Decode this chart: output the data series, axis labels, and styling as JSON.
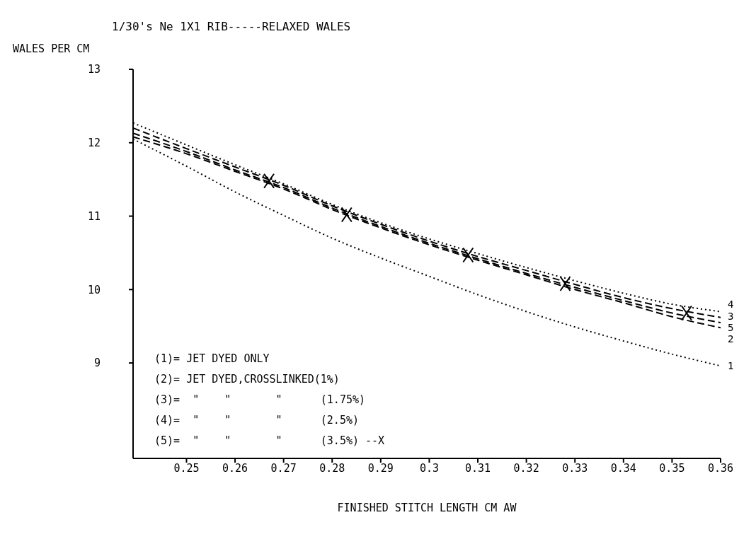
{
  "chart_data": {
    "type": "line",
    "title": "1/30's Ne 1X1 RIB-----RELAXED WALES",
    "xlabel": "FINISHED STITCH LENGTH CM AW",
    "ylabel": "WALES PER CM",
    "x": [
      0.239,
      0.25,
      0.26,
      0.27,
      0.28,
      0.29,
      0.3,
      0.31,
      0.32,
      0.33,
      0.34,
      0.35,
      0.36
    ],
    "series": [
      {
        "name": "1",
        "color": "#000000",
        "line_style": "dotted",
        "values": [
          12.05,
          11.68,
          11.33,
          11.01,
          10.7,
          10.43,
          10.18,
          9.93,
          9.7,
          9.49,
          9.3,
          9.12,
          8.96
        ]
      },
      {
        "name": "2",
        "color": "#000000",
        "line_style": "dashed",
        "values": [
          12.08,
          11.85,
          11.61,
          11.37,
          11.09,
          10.84,
          10.61,
          10.4,
          10.2,
          10.0,
          9.82,
          9.63,
          9.48
        ]
      },
      {
        "name": "3",
        "color": "#000000",
        "line_style": "dashed",
        "values": [
          12.2,
          11.92,
          11.67,
          11.42,
          11.14,
          10.89,
          10.66,
          10.45,
          10.26,
          10.07,
          9.89,
          9.74,
          9.62
        ]
      },
      {
        "name": "4",
        "color": "#000000",
        "line_style": "dotted",
        "values": [
          12.27,
          11.97,
          11.7,
          11.44,
          11.16,
          10.91,
          10.69,
          10.49,
          10.3,
          10.12,
          9.95,
          9.8,
          9.7
        ]
      },
      {
        "name": "5",
        "color": "#000000",
        "line_style": "dashed",
        "values": [
          12.13,
          11.88,
          11.63,
          11.39,
          11.11,
          10.86,
          10.63,
          10.42,
          10.22,
          10.03,
          9.85,
          9.68,
          9.55
        ]
      },
      {
        "type": "scatter",
        "marker": "cross",
        "color": "#000000",
        "x": [
          0.267,
          0.283,
          0.308,
          0.328,
          0.353
        ],
        "values": [
          11.48,
          11.02,
          10.47,
          10.08,
          9.68
        ]
      }
    ],
    "xlim": [
      0.239,
      0.36
    ],
    "xticks": [
      0.25,
      0.26,
      0.27,
      0.28,
      0.29,
      0.3,
      0.31,
      0.32,
      0.33,
      0.34,
      0.35,
      0.36
    ],
    "ylim": [
      7.7,
      13
    ],
    "yticks": [
      9,
      10,
      11,
      12,
      13
    ],
    "grid": false,
    "legend": false,
    "marker": "none",
    "annotations": [
      "(1)= JET DYED ONLY",
      "(2)= JET DYED,CROSSLINKED(1%)",
      "(3)=  \"    \"       \"      (1.75%)",
      "(4)=  \"    \"       \"      (2.5%)",
      "(5)=  \"    \"       \"      (3.5%) --X"
    ]
  }
}
